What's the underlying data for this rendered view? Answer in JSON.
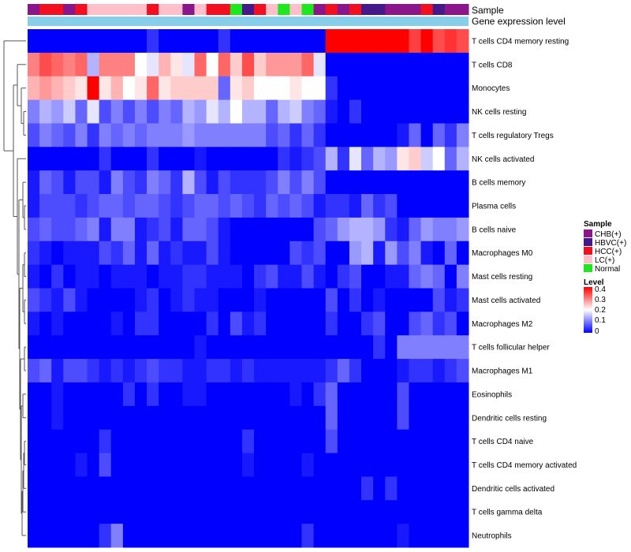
{
  "chart_data": {
    "type": "heatmap",
    "annotations": [
      "Sample",
      "Gene expression level"
    ],
    "sample_legend": {
      "title": "Sample",
      "items": [
        {
          "label": "CHB(+)",
          "color": "#8B158B"
        },
        {
          "label": "HBVC(+)",
          "color": "#45198A"
        },
        {
          "label": "HCC(+)",
          "color": "#F20F1F"
        },
        {
          "label": "LC(+)",
          "color": "#FFC0CB"
        },
        {
          "label": "Normal",
          "color": "#1DE81D"
        }
      ]
    },
    "level_legend": {
      "title": "Level",
      "ticks": [
        "0.4",
        "0.3",
        "0.2",
        "0.1",
        "0"
      ],
      "min": 0,
      "max": 0.4
    },
    "samples": [
      "CHB(+)",
      "HCC(+)",
      "HCC(+)",
      "CHB(+)",
      "HCC(+)",
      "LC(+)",
      "LC(+)",
      "LC(+)",
      "LC(+)",
      "LC(+)",
      "HCC(+)",
      "LC(+)",
      "LC(+)",
      "CHB(+)",
      "LC(+)",
      "HCC(+)",
      "HCC(+)",
      "Normal",
      "HBVC(+)",
      "HCC(+)",
      "LC(+)",
      "Normal",
      "LC(+)",
      "Normal",
      "CHB(+)",
      "HCC(+)",
      "CHB(+)",
      "HCC(+)",
      "HBVC(+)",
      "HBVC(+)",
      "CHB(+)",
      "CHB(+)",
      "CHB(+)",
      "HCC(+)",
      "HBVC(+)",
      "CHB(+)",
      "CHB(+)"
    ],
    "rows": [
      "T cells CD4 memory resting",
      "T cells CD8",
      "Monocytes",
      "NK cells resting",
      "T cells regulatory  Tregs",
      "NK cells activated",
      "B cells memory",
      "Plasma cells",
      "B cells naive",
      "Macrophages M0",
      "Mast cells resting",
      "Mast cells activated",
      "Macrophages M2",
      "T cells follicular helper",
      "Macrophages M1",
      "Eosinophils",
      "Dendritic cells resting",
      "T cells CD4 naive",
      "T cells CD4 memory activated",
      "Dendritic cells activated",
      "T cells gamma delta",
      "Neutrophils"
    ],
    "values": [
      [
        0,
        0,
        0,
        0,
        0,
        0,
        0,
        0,
        0,
        0,
        0.04,
        0,
        0,
        0,
        0,
        0,
        0.04,
        0,
        0,
        0,
        0,
        0,
        0,
        0,
        0,
        0.4,
        0.4,
        0.4,
        0.4,
        0.4,
        0.4,
        0.4,
        0.35,
        0.4,
        0.34,
        0.36,
        0.34
      ],
      [
        0.3,
        0.34,
        0.32,
        0.3,
        0.32,
        0.14,
        0.3,
        0.3,
        0.3,
        0.2,
        0.18,
        0.26,
        0.22,
        0.18,
        0.32,
        0.2,
        0.32,
        0.24,
        0.34,
        0.24,
        0.28,
        0.28,
        0.28,
        0.32,
        0.18,
        0,
        0,
        0,
        0,
        0,
        0,
        0,
        0,
        0,
        0,
        0,
        0
      ],
      [
        0.26,
        0.28,
        0.26,
        0.24,
        0.22,
        0.4,
        0.22,
        0.26,
        0.2,
        0.22,
        0.32,
        0.22,
        0.24,
        0.24,
        0.24,
        0.24,
        0.08,
        0.22,
        0.24,
        0.2,
        0.2,
        0.2,
        0.22,
        0.2,
        0.2,
        0.04,
        0,
        0,
        0,
        0,
        0,
        0,
        0,
        0,
        0,
        0,
        0
      ],
      [
        0.1,
        0.14,
        0.12,
        0.16,
        0.08,
        0.18,
        0.06,
        0.1,
        0.06,
        0.1,
        0.06,
        0.1,
        0.08,
        0.14,
        0.12,
        0.18,
        0.14,
        0.2,
        0.14,
        0.14,
        0.08,
        0.14,
        0.16,
        0.1,
        0.08,
        0.02,
        0,
        0.04,
        0,
        0,
        0,
        0,
        0,
        0,
        0,
        0,
        0
      ],
      [
        0.06,
        0.1,
        0.08,
        0.06,
        0.1,
        0.04,
        0.1,
        0.08,
        0.1,
        0.08,
        0.1,
        0.1,
        0.1,
        0.12,
        0.1,
        0.1,
        0.1,
        0.1,
        0.1,
        0.1,
        0.06,
        0.08,
        0.04,
        0.08,
        0.04,
        0,
        0,
        0,
        0,
        0,
        0,
        0.02,
        0.08,
        0,
        0.08,
        0.04,
        0.1
      ],
      [
        0,
        0,
        0,
        0,
        0,
        0,
        0.04,
        0,
        0,
        0,
        0.04,
        0,
        0,
        0,
        0.02,
        0,
        0,
        0,
        0,
        0,
        0,
        0.04,
        0.02,
        0.04,
        0.06,
        0.14,
        0.04,
        0.18,
        0.08,
        0.14,
        0.12,
        0.22,
        0.24,
        0.16,
        0.2,
        0.08,
        0.14
      ],
      [
        0.02,
        0.08,
        0.06,
        0.02,
        0.06,
        0.06,
        0.02,
        0.1,
        0.06,
        0.04,
        0.1,
        0.08,
        0.04,
        0.14,
        0.06,
        0.02,
        0.06,
        0.04,
        0.04,
        0.04,
        0.06,
        0.1,
        0.06,
        0.1,
        0.06,
        0,
        0,
        0,
        0,
        0,
        0,
        0,
        0,
        0,
        0,
        0,
        0
      ],
      [
        0.02,
        0.06,
        0.06,
        0.06,
        0.04,
        0.06,
        0.08,
        0.08,
        0.06,
        0.08,
        0.08,
        0.06,
        0.04,
        0.06,
        0.08,
        0.08,
        0.06,
        0.08,
        0.06,
        0.04,
        0.08,
        0.06,
        0.08,
        0.06,
        0.02,
        0.04,
        0.04,
        0.02,
        0.08,
        0.04,
        0.06,
        0,
        0,
        0,
        0,
        0,
        0
      ],
      [
        0.06,
        0.08,
        0.06,
        0.06,
        0.08,
        0.1,
        0.02,
        0.1,
        0.1,
        0.02,
        0.04,
        0.06,
        0.02,
        0.08,
        0.08,
        0.06,
        0.02,
        0,
        0,
        0,
        0,
        0,
        0,
        0,
        0.06,
        0.08,
        0.12,
        0.14,
        0.14,
        0.12,
        0.04,
        0.02,
        0.08,
        0.12,
        0.1,
        0.1,
        0.12
      ],
      [
        0.04,
        0.02,
        0,
        0.02,
        0.02,
        0.02,
        0.06,
        0.04,
        0.08,
        0.02,
        0.08,
        0.02,
        0.04,
        0.02,
        0.02,
        0.06,
        0.02,
        0,
        0,
        0,
        0,
        0,
        0.06,
        0.04,
        0.06,
        0,
        0,
        0.12,
        0.14,
        0.02,
        0.12,
        0.06,
        0.1,
        0.02,
        0,
        0.08,
        0
      ],
      [
        0.02,
        0,
        0.04,
        0,
        0.02,
        0.02,
        0,
        0.02,
        0.02,
        0.02,
        0,
        0.02,
        0.02,
        0.04,
        0.04,
        0.02,
        0.02,
        0.02,
        0,
        0.04,
        0.06,
        0.02,
        0.02,
        0.06,
        0.02,
        0,
        0.04,
        0.06,
        0,
        0,
        0.02,
        0.02,
        0.08,
        0.1,
        0.08,
        0,
        0.1
      ],
      [
        0.06,
        0.04,
        0.02,
        0.06,
        0.02,
        0,
        0,
        0,
        0,
        0.02,
        0.04,
        0,
        0.02,
        0.04,
        0.02,
        0.02,
        0,
        0,
        0,
        0.02,
        0,
        0,
        0,
        0,
        0,
        0.06,
        0,
        0.04,
        0,
        0.02,
        0,
        0,
        0,
        0,
        0.06,
        0.02,
        0.04
      ],
      [
        0.02,
        0,
        0.02,
        0,
        0,
        0,
        0,
        0.02,
        0,
        0.04,
        0.04,
        0,
        0,
        0,
        0,
        0.04,
        0,
        0.06,
        0.02,
        0.04,
        0,
        0,
        0,
        0,
        0,
        0.04,
        0,
        0,
        0.04,
        0.06,
        0,
        0,
        0.06,
        0.08,
        0.04,
        0.06,
        0
      ],
      [
        0,
        0,
        0,
        0,
        0,
        0,
        0,
        0,
        0,
        0,
        0,
        0,
        0,
        0,
        0.02,
        0,
        0,
        0,
        0,
        0,
        0,
        0,
        0,
        0,
        0,
        0,
        0,
        0,
        0,
        0.04,
        0,
        0.1,
        0.1,
        0.1,
        0.1,
        0.1,
        0.1
      ],
      [
        0.06,
        0.08,
        0.02,
        0.06,
        0.06,
        0.04,
        0.02,
        0.04,
        0.02,
        0.04,
        0.06,
        0.04,
        0.04,
        0.02,
        0.02,
        0.04,
        0.04,
        0.02,
        0.04,
        0.02,
        0.02,
        0.02,
        0.02,
        0.02,
        0.02,
        0.04,
        0.08,
        0.04,
        0,
        0,
        0,
        0.02,
        0.04,
        0.04,
        0.02,
        0.04,
        0.06
      ],
      [
        0,
        0,
        0.02,
        0,
        0,
        0,
        0,
        0,
        0.04,
        0,
        0.04,
        0,
        0,
        0.02,
        0.02,
        0,
        0,
        0,
        0,
        0,
        0,
        0,
        0.02,
        0,
        0.04,
        0.08,
        0,
        0,
        0,
        0,
        0,
        0.06,
        0,
        0,
        0,
        0,
        0
      ],
      [
        0,
        0,
        0.02,
        0,
        0,
        0,
        0,
        0,
        0,
        0,
        0,
        0,
        0,
        0,
        0,
        0,
        0,
        0,
        0,
        0,
        0,
        0,
        0,
        0,
        0,
        0.08,
        0,
        0,
        0,
        0,
        0,
        0.06,
        0,
        0,
        0,
        0,
        0
      ],
      [
        0,
        0,
        0,
        0,
        0,
        0,
        0.04,
        0,
        0,
        0,
        0,
        0,
        0,
        0,
        0,
        0,
        0,
        0,
        0.04,
        0,
        0,
        0,
        0,
        0,
        0,
        0.06,
        0,
        0,
        0,
        0,
        0,
        0,
        0,
        0,
        0,
        0,
        0
      ],
      [
        0,
        0,
        0,
        0,
        0.02,
        0,
        0.06,
        0,
        0,
        0,
        0,
        0,
        0,
        0,
        0,
        0,
        0,
        0,
        0.02,
        0,
        0,
        0,
        0,
        0.02,
        0,
        0,
        0,
        0,
        0,
        0,
        0,
        0,
        0,
        0,
        0,
        0,
        0
      ],
      [
        0,
        0,
        0,
        0,
        0,
        0,
        0,
        0,
        0,
        0,
        0,
        0,
        0,
        0,
        0,
        0,
        0,
        0,
        0,
        0,
        0,
        0,
        0,
        0,
        0,
        0,
        0,
        0,
        0.04,
        0,
        0.04,
        0,
        0,
        0,
        0,
        0,
        0
      ],
      [
        0,
        0,
        0,
        0,
        0,
        0,
        0,
        0,
        0,
        0,
        0,
        0,
        0,
        0,
        0,
        0,
        0,
        0,
        0,
        0,
        0,
        0,
        0,
        0,
        0,
        0,
        0,
        0,
        0,
        0,
        0,
        0,
        0,
        0,
        0,
        0,
        0
      ],
      [
        0,
        0,
        0,
        0,
        0,
        0,
        0.04,
        0.1,
        0,
        0,
        0,
        0,
        0,
        0,
        0,
        0,
        0,
        0,
        0,
        0,
        0,
        0,
        0,
        0.04,
        0,
        0,
        0,
        0,
        0,
        0,
        0,
        0.02,
        0,
        0,
        0,
        0,
        0
      ]
    ]
  }
}
